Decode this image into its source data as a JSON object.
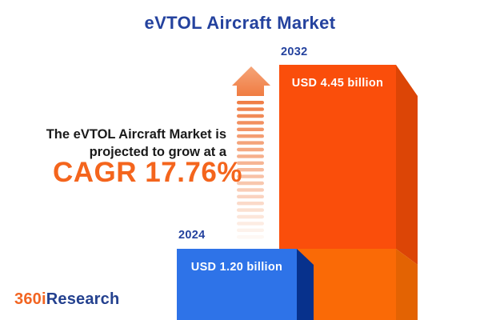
{
  "title": "eVTOL Aircraft Market",
  "tagline": {
    "line1": "The eVTOL Aircraft Market is",
    "line2": "projected to grow at a",
    "cagr": "CAGR 17.76%"
  },
  "bars": [
    {
      "year": "2024",
      "value_label": "USD 1.20 billion"
    },
    {
      "year": "2032",
      "value_label": "USD 4.45 billion"
    }
  ],
  "logo": {
    "part1": "360i",
    "part2": "Research"
  },
  "arrow": {
    "name": "growth-arrow",
    "stripe_count": 21,
    "stripe_color_start": [
      240,
      126,
      70
    ],
    "stripe_color_end": [
      254,
      248,
      244
    ]
  },
  "colors": {
    "title_blue": "#24429E",
    "cagr_orange": "#F4651D",
    "bar_2024_front": "#2E73E8",
    "bar_2024_side": "#07318C",
    "bar_2032_front_upper": "#FA4E0B",
    "bar_2032_front_lower": "#FA6A06",
    "bar_2032_side_top": "#DC4506",
    "bar_2032_side_bottom": "#E36303",
    "arrow_head_top": "#F5A478",
    "arrow_head_bottom": "#F07C42",
    "logo_orange": "#F26522",
    "logo_blue": "#24418F",
    "value_text": "#ffffff",
    "tagline_text": "#1A1A1A"
  },
  "chart_data": {
    "type": "bar",
    "title": "eVTOL Aircraft Market",
    "categories": [
      "2024",
      "2032"
    ],
    "values": [
      1.2,
      4.45
    ],
    "unit": "USD billion",
    "value_labels": [
      "USD 1.20 billion",
      "USD 4.45 billion"
    ],
    "annotations": [
      "The eVTOL Aircraft Market is projected to grow at a CAGR 17.76%"
    ],
    "cagr_percent": 17.76,
    "series_colors": [
      "#2E73E8",
      "#FA4E0B"
    ],
    "legend": "none",
    "grid": false,
    "axes_shown": false,
    "style": "3d-infographic-bars",
    "source_brand": "360iResearch"
  }
}
